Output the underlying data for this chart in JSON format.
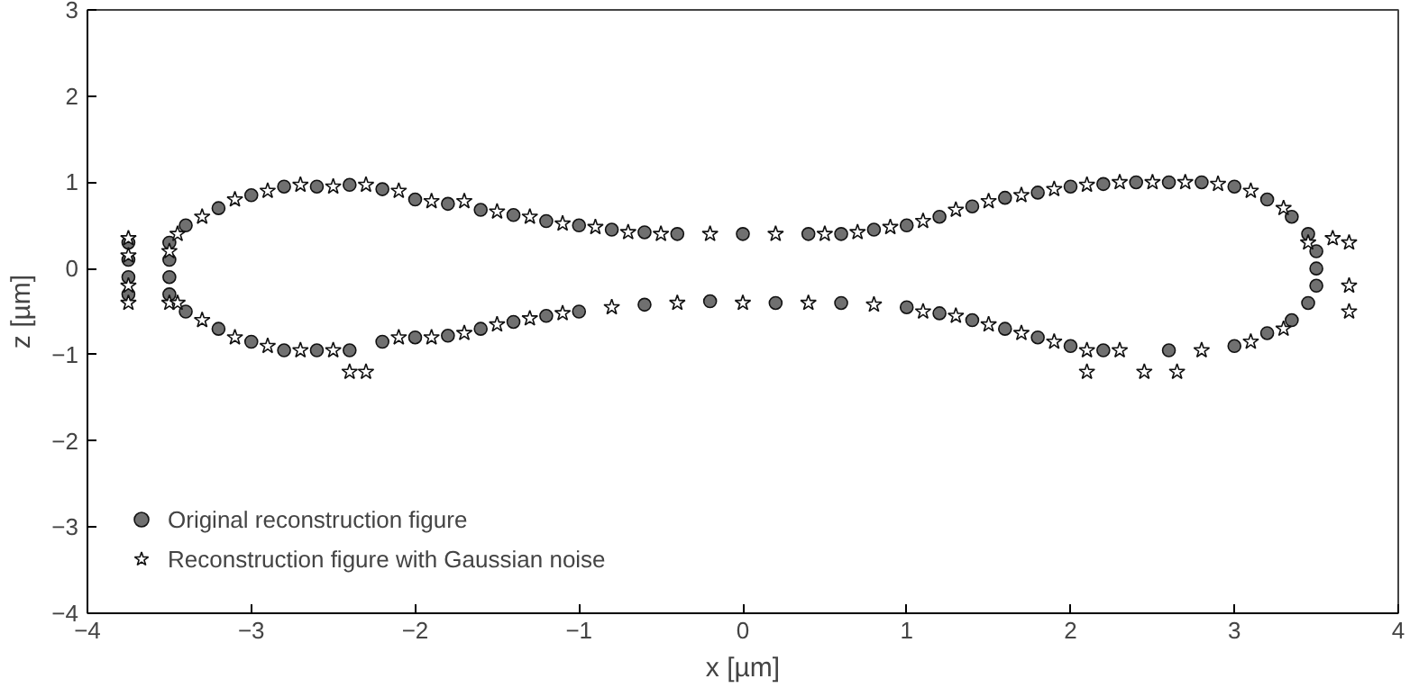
{
  "chart_data": {
    "type": "scatter",
    "xlabel": "x [µm]",
    "ylabel": "z [µm]",
    "xlim": [
      -4,
      4
    ],
    "ylim": [
      -4,
      3
    ],
    "xticks": [
      -4,
      -3,
      -2,
      -1,
      0,
      1,
      2,
      3,
      4
    ],
    "yticks": [
      -4,
      -3,
      -2,
      -1,
      0,
      1,
      2,
      3
    ],
    "grid": false,
    "legend": "bottom left",
    "series": [
      {
        "name": "Original reconstruction figure",
        "color": "#707070",
        "marker": "circle",
        "x": [
          -3.75,
          -3.75,
          -3.75,
          -3.75,
          -3.5,
          -3.5,
          -3.5,
          -3.4,
          -3.2,
          -3.0,
          -2.8,
          -2.6,
          -2.4,
          -2.2,
          -2.0,
          -1.8,
          -1.6,
          -1.4,
          -1.2,
          -1.0,
          -0.8,
          -0.6,
          -0.4,
          0.0,
          0.4,
          0.6,
          0.8,
          1.0,
          1.2,
          1.4,
          1.6,
          1.8,
          2.0,
          2.2,
          2.4,
          2.6,
          2.8,
          3.0,
          3.2,
          3.35,
          3.45,
          3.5,
          3.5,
          3.5,
          3.45,
          -3.5,
          -3.4,
          -3.2,
          -3.0,
          -2.8,
          -2.6,
          -2.4,
          -2.2,
          -2.0,
          -1.8,
          -1.6,
          -1.4,
          -1.2,
          -1.0,
          -0.6,
          -0.2,
          0.2,
          0.6,
          1.0,
          1.2,
          1.4,
          1.6,
          1.8,
          2.0,
          2.2,
          2.6,
          3.0,
          3.2,
          3.35
        ],
        "values": [
          0.3,
          0.1,
          -0.1,
          -0.3,
          0.3,
          0.1,
          -0.1,
          0.5,
          0.7,
          0.85,
          0.95,
          0.95,
          0.97,
          0.92,
          0.8,
          0.75,
          0.68,
          0.62,
          0.55,
          0.5,
          0.45,
          0.42,
          0.4,
          0.4,
          0.4,
          0.4,
          0.45,
          0.5,
          0.6,
          0.72,
          0.82,
          0.88,
          0.95,
          0.98,
          1.0,
          1.0,
          1.0,
          0.95,
          0.8,
          0.6,
          0.4,
          0.2,
          0.0,
          -0.2,
          -0.4,
          -0.3,
          -0.5,
          -0.7,
          -0.85,
          -0.95,
          -0.95,
          -0.95,
          -0.85,
          -0.8,
          -0.78,
          -0.7,
          -0.62,
          -0.55,
          -0.5,
          -0.42,
          -0.38,
          -0.4,
          -0.4,
          -0.45,
          -0.52,
          -0.6,
          -0.7,
          -0.8,
          -0.9,
          -0.95,
          -0.95,
          -0.9,
          -0.75,
          -0.6
        ]
      },
      {
        "name": "Reconstruction figure with Gaussian noise",
        "color": "#ffffff",
        "marker": "star",
        "x": [
          -3.75,
          -3.75,
          -3.75,
          -3.75,
          -3.5,
          -3.5,
          -3.45,
          -3.3,
          -3.1,
          -2.9,
          -2.7,
          -2.5,
          -2.3,
          -2.1,
          -1.9,
          -1.7,
          -1.5,
          -1.3,
          -1.1,
          -0.9,
          -0.7,
          -0.5,
          -0.2,
          0.2,
          0.5,
          0.7,
          0.9,
          1.1,
          1.3,
          1.5,
          1.7,
          1.9,
          2.1,
          2.3,
          2.5,
          2.7,
          2.9,
          3.1,
          3.3,
          3.45,
          3.6,
          3.7,
          3.7,
          3.7,
          -3.45,
          -3.3,
          -3.1,
          -2.9,
          -2.7,
          -2.5,
          -2.4,
          -2.3,
          -2.1,
          -1.9,
          -1.7,
          -1.5,
          -1.3,
          -1.1,
          -0.8,
          -0.4,
          0.0,
          0.4,
          0.8,
          1.1,
          1.3,
          1.5,
          1.7,
          1.9,
          2.1,
          2.1,
          2.3,
          2.45,
          2.65,
          2.8,
          3.1,
          3.3
        ],
        "values": [
          0.35,
          0.15,
          -0.2,
          -0.4,
          0.2,
          -0.4,
          0.4,
          0.6,
          0.8,
          0.9,
          0.97,
          0.95,
          0.97,
          0.9,
          0.78,
          0.78,
          0.66,
          0.6,
          0.52,
          0.48,
          0.42,
          0.4,
          0.4,
          0.4,
          0.4,
          0.42,
          0.48,
          0.55,
          0.68,
          0.78,
          0.85,
          0.92,
          0.97,
          1.0,
          1.0,
          1.0,
          0.98,
          0.9,
          0.7,
          0.3,
          0.35,
          0.3,
          -0.2,
          -0.5,
          -0.4,
          -0.6,
          -0.8,
          -0.9,
          -0.95,
          -0.95,
          -1.2,
          -1.2,
          -0.8,
          -0.8,
          -0.75,
          -0.65,
          -0.58,
          -0.52,
          -0.45,
          -0.4,
          -0.4,
          -0.4,
          -0.42,
          -0.5,
          -0.55,
          -0.65,
          -0.75,
          -0.85,
          -0.95,
          -1.2,
          -0.95,
          -1.2,
          -1.2,
          -0.95,
          -0.85,
          -0.7
        ]
      }
    ]
  }
}
